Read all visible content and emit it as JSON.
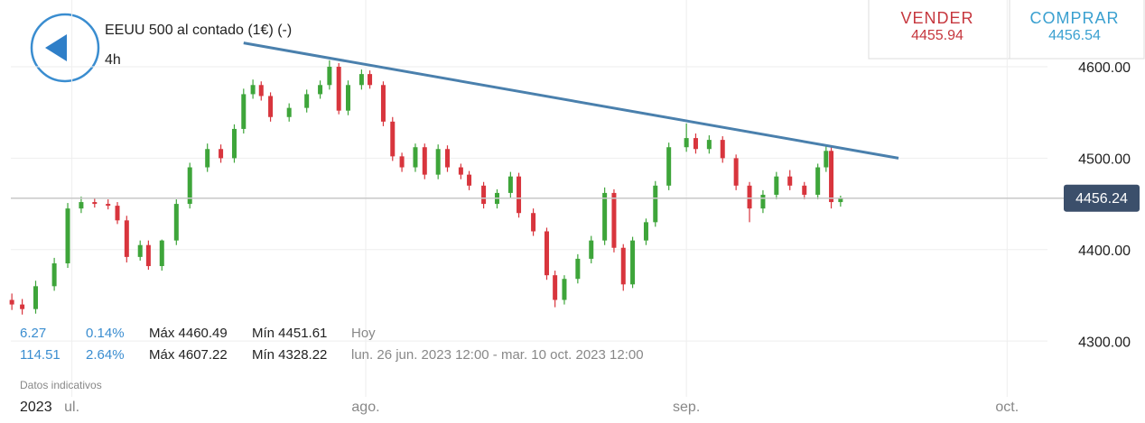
{
  "header": {
    "title": "EEUU 500 al contado (1€) (-)",
    "timeframe": "4h"
  },
  "quotes": {
    "sell_label": "VENDER",
    "sell": 4455.94,
    "buy_label": "COMPRAR",
    "buy": 4456.54
  },
  "stats": [
    [
      "6.27",
      "0.14%",
      "Máx 4460.49",
      "Mín 4451.61",
      "Hoy"
    ],
    [
      "114.51",
      "2.64%",
      "Máx 4607.22",
      "Mín 4328.22",
      "lun. 26 jun. 2023 12:00 - mar. 10 oct. 2023 12:00"
    ]
  ],
  "disclaimer": "Datos indicativos",
  "year_label": "2023",
  "chart_data": {
    "type": "candlestick",
    "up_color": "#3ea53a",
    "down_color": "#d8353d",
    "x": [
      -3.2,
      -2.2,
      -0.9,
      0.9,
      2.2,
      3.5,
      4.8,
      6.1,
      7.0,
      7.9,
      9.2,
      10.0,
      11.3,
      12.7,
      14.0,
      15.7,
      17.0,
      18.3,
      19.2,
      20.1,
      20.9,
      21.8,
      23.6,
      25.3,
      26.6,
      27.5,
      28.4,
      29.3,
      30.6,
      31.4,
      32.7,
      33.6,
      34.5,
      35.8,
      36.7,
      38.0,
      38.9,
      40.2,
      41.0,
      42.4,
      43.7,
      45.0,
      45.8,
      47.2,
      48.5,
      49.3,
      50.2,
      51.5,
      52.8,
      54.1,
      55.0,
      55.9,
      56.8,
      58.1,
      59.0,
      60.3,
      62.0,
      62.9,
      64.2,
      65.5,
      66.8,
      68.1,
      69.4,
      70.7,
      72.0,
      73.4,
      74.7,
      75.5,
      76.0,
      76.9
    ],
    "open": [
      4345,
      4340,
      4335,
      4360,
      4385,
      4445,
      4452,
      4450,
      4448,
      4432,
      4392,
      4405,
      4382,
      4410,
      4450,
      4490,
      4510,
      4500,
      4532,
      4570,
      4580,
      4568,
      4545,
      4555,
      4570,
      4580,
      4600,
      4552,
      4580,
      4592,
      4580,
      4540,
      4502,
      4490,
      4512,
      4482,
      4510,
      4490,
      4482,
      4470,
      4450,
      4462,
      4480,
      4440,
      4420,
      4372,
      4345,
      4368,
      4390,
      4410,
      4462,
      4402,
      4362,
      4410,
      4430,
      4470,
      4512,
      4522,
      4510,
      4520,
      4500,
      4470,
      4445,
      4460,
      4480,
      4470,
      4460,
      4490,
      4508,
      4452
    ],
    "high": [
      4352,
      4346,
      4366,
      4391,
      4451,
      4458,
      4457,
      4455,
      4452,
      4437,
      4410,
      4410,
      4411,
      4455,
      4495,
      4516,
      4515,
      4537,
      4576,
      4586,
      4584,
      4572,
      4560,
      4575,
      4585,
      4607,
      4604,
      4585,
      4597,
      4596,
      4584,
      4545,
      4506,
      4516,
      4516,
      4515,
      4514,
      4494,
      4486,
      4474,
      4466,
      4485,
      4484,
      4445,
      4424,
      4377,
      4372,
      4395,
      4415,
      4468,
      4466,
      4406,
      4414,
      4434,
      4475,
      4517,
      4538,
      4527,
      4525,
      4524,
      4504,
      4474,
      4465,
      4485,
      4487,
      4474,
      4494,
      4513,
      4512,
      4459
    ],
    "low": [
      4334,
      4329,
      4330,
      4355,
      4380,
      4440,
      4446,
      4444,
      4428,
      4386,
      4388,
      4378,
      4377,
      4405,
      4445,
      4485,
      4495,
      4495,
      4527,
      4565,
      4563,
      4540,
      4540,
      4550,
      4565,
      4575,
      4548,
      4547,
      4575,
      4576,
      4535,
      4497,
      4485,
      4485,
      4477,
      4477,
      4485,
      4477,
      4465,
      4445,
      4445,
      4457,
      4435,
      4415,
      4367,
      4337,
      4340,
      4363,
      4385,
      4405,
      4397,
      4355,
      4358,
      4405,
      4425,
      4465,
      4507,
      4505,
      4505,
      4495,
      4465,
      4430,
      4440,
      4455,
      4465,
      4455,
      4455,
      4485,
      4445,
      4447
    ],
    "close": [
      4340,
      4335,
      4360,
      4385,
      4445,
      4452,
      4450,
      4448,
      4432,
      4392,
      4405,
      4382,
      4410,
      4450,
      4490,
      4510,
      4500,
      4532,
      4570,
      4580,
      4568,
      4545,
      4555,
      4570,
      4580,
      4600,
      4552,
      4580,
      4592,
      4580,
      4540,
      4502,
      4490,
      4512,
      4482,
      4510,
      4490,
      4482,
      4470,
      4450,
      4462,
      4480,
      4440,
      4420,
      4372,
      4345,
      4368,
      4390,
      4410,
      4462,
      4402,
      4362,
      4410,
      4430,
      4470,
      4512,
      4522,
      4510,
      4520,
      4500,
      4470,
      4445,
      4460,
      4480,
      4470,
      4460,
      4490,
      4508,
      4452,
      4456
    ],
    "trendline": {
      "color": "#4a80ad",
      "x": [
        19.2,
        82.5
      ],
      "y": [
        4626,
        4500
      ]
    },
    "current_price": 4456.24,
    "xlim": [
      -3.3,
      96.9
    ],
    "ylim": [
      4239,
      4673
    ],
    "xticks": [
      {
        "value": 2.6,
        "label": "ul."
      },
      {
        "value": 31,
        "label": "ago."
      },
      {
        "value": 62,
        "label": "sep."
      },
      {
        "value": 93,
        "label": "oct."
      }
    ],
    "yticks": [
      {
        "value": 4300,
        "label": "4300.00"
      },
      {
        "value": 4400,
        "label": "4400.00"
      },
      {
        "value": 4500,
        "label": "4500.00"
      },
      {
        "value": 4600,
        "label": "4600.00"
      }
    ],
    "grid": true
  }
}
